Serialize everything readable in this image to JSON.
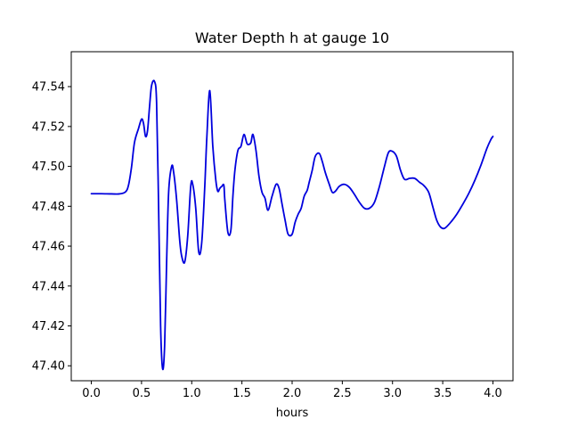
{
  "chart_data": {
    "type": "line",
    "title": "Water Depth h at gauge 10",
    "xlabel": "hours",
    "ylabel": "",
    "xlim": [
      -0.2,
      4.2
    ],
    "ylim": [
      47.3925,
      47.5575
    ],
    "xticks": [
      0.0,
      0.5,
      1.0,
      1.5,
      2.0,
      2.5,
      3.0,
      3.5,
      4.0
    ],
    "xtick_labels": [
      "0.0",
      "0.5",
      "1.0",
      "1.5",
      "2.0",
      "2.5",
      "3.0",
      "3.5",
      "4.0"
    ],
    "yticks": [
      47.4,
      47.42,
      47.44,
      47.46,
      47.48,
      47.5,
      47.52,
      47.54
    ],
    "ytick_labels": [
      "47.40",
      "47.42",
      "47.44",
      "47.46",
      "47.48",
      "47.50",
      "47.52",
      "47.54"
    ],
    "grid": false,
    "series": [
      {
        "color": "#0000dd",
        "x": [
          0.0,
          0.1,
          0.2,
          0.28,
          0.34,
          0.37,
          0.4,
          0.43,
          0.47,
          0.5,
          0.52,
          0.54,
          0.56,
          0.58,
          0.6,
          0.63,
          0.65,
          0.67,
          0.69,
          0.71,
          0.73,
          0.75,
          0.77,
          0.8,
          0.82,
          0.85,
          0.88,
          0.9,
          0.93,
          0.96,
          0.99,
          1.01,
          1.04,
          1.07,
          1.1,
          1.13,
          1.15,
          1.18,
          1.21,
          1.24,
          1.26,
          1.28,
          1.3,
          1.32,
          1.33,
          1.36,
          1.39,
          1.41,
          1.43,
          1.46,
          1.49,
          1.52,
          1.55,
          1.57,
          1.59,
          1.61,
          1.64,
          1.67,
          1.7,
          1.73,
          1.76,
          1.8,
          1.84,
          1.87,
          1.9,
          1.93,
          1.96,
          2.0,
          2.03,
          2.06,
          2.09,
          2.12,
          2.15,
          2.17,
          2.2,
          2.23,
          2.27,
          2.3,
          2.33,
          2.37,
          2.4,
          2.43,
          2.47,
          2.52,
          2.57,
          2.62,
          2.67,
          2.72,
          2.77,
          2.82,
          2.87,
          2.92,
          2.96,
          3.0,
          3.04,
          3.08,
          3.12,
          3.17,
          3.22,
          3.27,
          3.31,
          3.36,
          3.4,
          3.44,
          3.48,
          3.52,
          3.58,
          3.64,
          3.7,
          3.76,
          3.82,
          3.88,
          3.94,
          3.98,
          4.0
        ],
        "y": [
          47.4863,
          47.4863,
          47.4862,
          47.4862,
          47.4872,
          47.4905,
          47.4995,
          47.512,
          47.519,
          47.5237,
          47.5215,
          47.515,
          47.518,
          47.53,
          47.5405,
          47.5425,
          47.532,
          47.48,
          47.42,
          47.3985,
          47.41,
          47.452,
          47.487,
          47.5,
          47.497,
          47.483,
          47.463,
          47.455,
          47.452,
          47.465,
          47.49,
          47.491,
          47.479,
          47.457,
          47.462,
          47.49,
          47.514,
          47.538,
          47.51,
          47.493,
          47.4875,
          47.489,
          47.49,
          47.4905,
          47.483,
          47.467,
          47.468,
          47.485,
          47.498,
          47.508,
          47.51,
          47.516,
          47.5115,
          47.511,
          47.512,
          47.516,
          47.508,
          47.495,
          47.487,
          47.484,
          47.478,
          47.485,
          47.491,
          47.489,
          47.481,
          47.473,
          47.466,
          47.466,
          47.472,
          47.476,
          47.479,
          47.485,
          47.488,
          47.492,
          47.498,
          47.505,
          47.5065,
          47.5025,
          47.497,
          47.491,
          47.487,
          47.4875,
          47.49,
          47.491,
          47.4895,
          47.486,
          47.482,
          47.479,
          47.479,
          47.482,
          47.49,
          47.5,
          47.507,
          47.5075,
          47.505,
          47.498,
          47.4935,
          47.494,
          47.494,
          47.492,
          47.4905,
          47.487,
          47.48,
          47.473,
          47.4695,
          47.469,
          47.472,
          47.476,
          47.481,
          47.4865,
          47.493,
          47.5005,
          47.509,
          47.5135,
          47.515
        ]
      }
    ]
  }
}
